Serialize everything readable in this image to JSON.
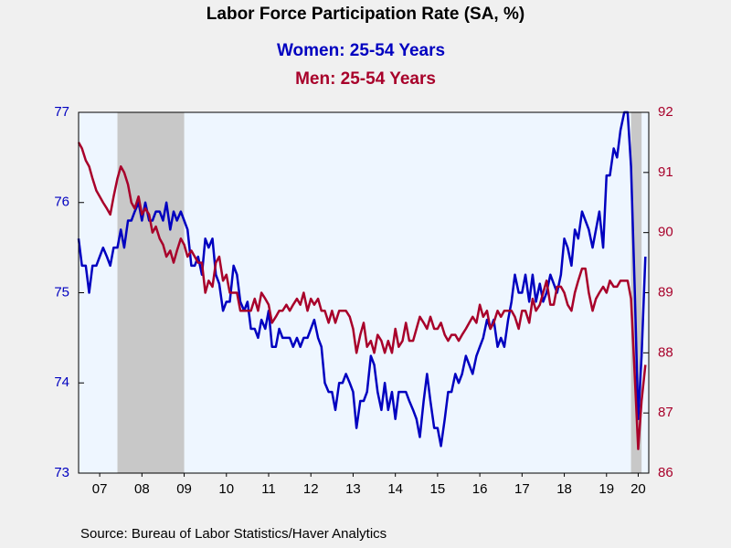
{
  "chart_data": {
    "type": "line",
    "title": "Labor Force Participation Rate (SA, %)",
    "source": "Source:  Bureau of Labor Statistics/Haver Analytics",
    "xlim": [
      2007,
      2020.5
    ],
    "xticks": [
      {
        "value": 2007.5,
        "label": "07"
      },
      {
        "value": 2008.5,
        "label": "08"
      },
      {
        "value": 2009.5,
        "label": "09"
      },
      {
        "value": 2010.5,
        "label": "10"
      },
      {
        "value": 2011.5,
        "label": "11"
      },
      {
        "value": 2012.5,
        "label": "12"
      },
      {
        "value": 2013.5,
        "label": "13"
      },
      {
        "value": 2014.5,
        "label": "14"
      },
      {
        "value": 2015.5,
        "label": "15"
      },
      {
        "value": 2016.5,
        "label": "16"
      },
      {
        "value": 2017.5,
        "label": "17"
      },
      {
        "value": 2018.5,
        "label": "18"
      },
      {
        "value": 2019.5,
        "label": "19"
      },
      {
        "value": 2020.25,
        "label": "20"
      }
    ],
    "ylim": [
      73,
      77
    ],
    "yticks": [
      73,
      74,
      75,
      76,
      77
    ],
    "y2lim": [
      86,
      92
    ],
    "y2ticks": [
      86,
      87,
      88,
      89,
      90,
      91,
      92
    ],
    "recessions": [
      [
        2007.92,
        2009.5
      ],
      [
        2020.08,
        2020.33
      ]
    ],
    "x": [
      2007.0,
      2007.08,
      2007.17,
      2007.25,
      2007.33,
      2007.42,
      2007.5,
      2007.58,
      2007.67,
      2007.75,
      2007.83,
      2007.92,
      2008.0,
      2008.08,
      2008.17,
      2008.25,
      2008.33,
      2008.42,
      2008.5,
      2008.58,
      2008.67,
      2008.75,
      2008.83,
      2008.92,
      2009.0,
      2009.08,
      2009.17,
      2009.25,
      2009.33,
      2009.42,
      2009.5,
      2009.58,
      2009.67,
      2009.75,
      2009.83,
      2009.92,
      2010.0,
      2010.08,
      2010.17,
      2010.25,
      2010.33,
      2010.42,
      2010.5,
      2010.58,
      2010.67,
      2010.75,
      2010.83,
      2010.92,
      2011.0,
      2011.08,
      2011.17,
      2011.25,
      2011.33,
      2011.42,
      2011.5,
      2011.58,
      2011.67,
      2011.75,
      2011.83,
      2011.92,
      2012.0,
      2012.08,
      2012.17,
      2012.25,
      2012.33,
      2012.42,
      2012.5,
      2012.58,
      2012.67,
      2012.75,
      2012.83,
      2012.92,
      2013.0,
      2013.08,
      2013.17,
      2013.25,
      2013.33,
      2013.42,
      2013.5,
      2013.58,
      2013.67,
      2013.75,
      2013.83,
      2013.92,
      2014.0,
      2014.08,
      2014.17,
      2014.25,
      2014.33,
      2014.42,
      2014.5,
      2014.58,
      2014.67,
      2014.75,
      2014.83,
      2014.92,
      2015.0,
      2015.08,
      2015.17,
      2015.25,
      2015.33,
      2015.42,
      2015.5,
      2015.58,
      2015.67,
      2015.75,
      2015.83,
      2015.92,
      2016.0,
      2016.08,
      2016.17,
      2016.25,
      2016.33,
      2016.42,
      2016.5,
      2016.58,
      2016.67,
      2016.75,
      2016.83,
      2016.92,
      2017.0,
      2017.08,
      2017.17,
      2017.25,
      2017.33,
      2017.42,
      2017.5,
      2017.58,
      2017.67,
      2017.75,
      2017.83,
      2017.92,
      2018.0,
      2018.08,
      2018.17,
      2018.25,
      2018.33,
      2018.42,
      2018.5,
      2018.58,
      2018.67,
      2018.75,
      2018.83,
      2018.92,
      2019.0,
      2019.08,
      2019.17,
      2019.25,
      2019.33,
      2019.42,
      2019.5,
      2019.58,
      2019.67,
      2019.75,
      2019.83,
      2019.92,
      2020.0,
      2020.08,
      2020.17,
      2020.25,
      2020.33,
      2020.42
    ],
    "series": [
      {
        "name": "Women: 25-54 Years",
        "color": "#0000c0",
        "axis": "y",
        "values": [
          75.6,
          75.3,
          75.3,
          75.0,
          75.3,
          75.3,
          75.4,
          75.5,
          75.4,
          75.3,
          75.5,
          75.5,
          75.7,
          75.5,
          75.8,
          75.8,
          75.9,
          76.0,
          75.8,
          76.0,
          75.8,
          75.8,
          75.9,
          75.9,
          75.8,
          76.0,
          75.7,
          75.9,
          75.8,
          75.9,
          75.8,
          75.7,
          75.3,
          75.3,
          75.4,
          75.2,
          75.6,
          75.5,
          75.6,
          75.2,
          75.1,
          74.8,
          74.9,
          74.9,
          75.3,
          75.2,
          74.9,
          74.8,
          74.9,
          74.6,
          74.6,
          74.5,
          74.7,
          74.6,
          74.8,
          74.4,
          74.4,
          74.6,
          74.5,
          74.5,
          74.5,
          74.4,
          74.5,
          74.4,
          74.5,
          74.5,
          74.6,
          74.7,
          74.5,
          74.4,
          74.0,
          73.9,
          73.9,
          73.7,
          74.0,
          74.0,
          74.1,
          74.0,
          73.9,
          73.5,
          73.8,
          73.8,
          73.9,
          74.3,
          74.2,
          73.9,
          73.7,
          74.0,
          73.7,
          73.9,
          73.6,
          73.9,
          73.9,
          73.9,
          73.8,
          73.7,
          73.6,
          73.4,
          73.8,
          74.1,
          73.8,
          73.5,
          73.5,
          73.3,
          73.6,
          73.9,
          73.9,
          74.1,
          74.0,
          74.1,
          74.3,
          74.2,
          74.1,
          74.3,
          74.4,
          74.5,
          74.7,
          74.6,
          74.7,
          74.4,
          74.5,
          74.4,
          74.7,
          74.9,
          75.2,
          75.0,
          75.0,
          75.2,
          74.9,
          75.2,
          74.9,
          75.1,
          74.9,
          75.0,
          75.2,
          75.1,
          75.0,
          75.2,
          75.6,
          75.5,
          75.3,
          75.7,
          75.6,
          75.9,
          75.8,
          75.7,
          75.5,
          75.7,
          75.9,
          75.5,
          76.3,
          76.3,
          76.6,
          76.5,
          76.8,
          77.0,
          77.0,
          76.4,
          75.0,
          73.6,
          74.3,
          75.4
        ]
      },
      {
        "name": "Men: 25-54 Years",
        "color": "#a8002a",
        "axis": "y2",
        "values": [
          91.5,
          91.4,
          91.2,
          91.1,
          90.9,
          90.7,
          90.6,
          90.5,
          90.4,
          90.3,
          90.6,
          90.9,
          91.1,
          91.0,
          90.8,
          90.5,
          90.4,
          90.6,
          90.3,
          90.4,
          90.3,
          90.0,
          90.1,
          89.9,
          89.8,
          89.6,
          89.7,
          89.5,
          89.7,
          89.9,
          89.8,
          89.6,
          89.7,
          89.6,
          89.5,
          89.5,
          89.0,
          89.2,
          89.1,
          89.5,
          89.6,
          89.2,
          89.3,
          89.0,
          89.0,
          89.0,
          88.7,
          88.7,
          88.7,
          88.7,
          88.9,
          88.7,
          89.0,
          88.9,
          88.8,
          88.5,
          88.6,
          88.7,
          88.7,
          88.8,
          88.7,
          88.8,
          88.9,
          88.8,
          89.0,
          88.7,
          88.9,
          88.8,
          88.9,
          88.7,
          88.7,
          88.5,
          88.7,
          88.5,
          88.7,
          88.7,
          88.7,
          88.6,
          88.4,
          88.0,
          88.3,
          88.5,
          88.1,
          88.2,
          88.0,
          88.3,
          88.2,
          88.0,
          88.2,
          88.0,
          88.4,
          88.1,
          88.2,
          88.5,
          88.2,
          88.2,
          88.4,
          88.6,
          88.5,
          88.4,
          88.6,
          88.4,
          88.4,
          88.5,
          88.3,
          88.2,
          88.3,
          88.3,
          88.2,
          88.3,
          88.4,
          88.5,
          88.6,
          88.5,
          88.8,
          88.6,
          88.7,
          88.4,
          88.5,
          88.7,
          88.6,
          88.7,
          88.7,
          88.7,
          88.6,
          88.4,
          88.7,
          88.7,
          88.5,
          88.9,
          88.7,
          88.8,
          89.0,
          89.2,
          88.8,
          88.8,
          89.1,
          89.1,
          89.0,
          88.8,
          88.7,
          89.0,
          89.2,
          89.4,
          89.4,
          89.0,
          88.7,
          88.9,
          89.0,
          89.1,
          89.0,
          89.2,
          89.1,
          89.1,
          89.2,
          89.2,
          89.2,
          88.9,
          87.6,
          86.4,
          87.2,
          87.8
        ]
      }
    ]
  }
}
